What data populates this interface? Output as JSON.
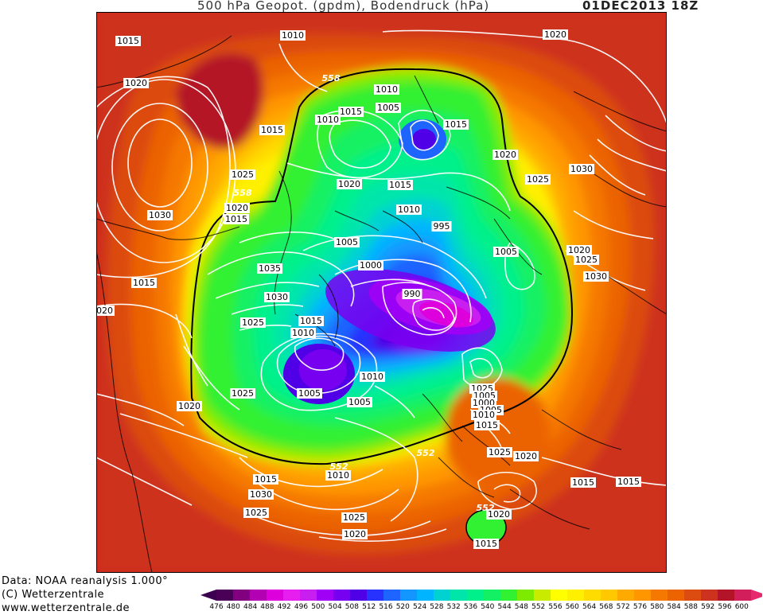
{
  "title": {
    "text": "500 hPa Geopot. (gpdm), Bodendruck (hPa)",
    "date": "01DEC2013 18Z"
  },
  "credits": {
    "line1": "Data: NOAA reanalysis 1.000°",
    "line2": "(C) Wetterzentrale",
    "line3": "www.wetterzentrale.de"
  },
  "legend": {
    "values": [
      "476",
      "480",
      "484",
      "488",
      "492",
      "496",
      "500",
      "504",
      "508",
      "512",
      "516",
      "520",
      "524",
      "528",
      "532",
      "536",
      "540",
      "544",
      "548",
      "552",
      "556",
      "560",
      "564",
      "568",
      "572",
      "576",
      "580",
      "584",
      "588",
      "592",
      "596",
      "600"
    ],
    "colors": [
      "#4b0058",
      "#82007f",
      "#b300b3",
      "#dd00dd",
      "#e61ef0",
      "#c81ef0",
      "#a000f5",
      "#7800f0",
      "#5000e6",
      "#2832ff",
      "#1e64ff",
      "#1496ff",
      "#00b4ff",
      "#00d2d2",
      "#00e6aa",
      "#00f08c",
      "#14f064",
      "#32f032",
      "#7deb00",
      "#c8eb00",
      "#ffff00",
      "#fff000",
      "#ffdc00",
      "#ffc800",
      "#ffaa00",
      "#ff9600",
      "#f57800",
      "#eb6400",
      "#dc4b0f",
      "#cd321e",
      "#b41428",
      "#d21e5a"
    ],
    "arrow_left": "#3c0050",
    "arrow_right": "#e6286e"
  },
  "map_labels": [
    "1015",
    "1010",
    "1020",
    "1020",
    "558",
    "1010",
    "1005",
    "1015",
    "1015",
    "1010",
    "1015",
    "1020",
    "1025",
    "1030",
    "1015",
    "1020",
    "1030",
    "1020",
    "1015",
    "1025",
    "558",
    "1020",
    "1015",
    "1035",
    "1005",
    "1000",
    "995",
    "1005",
    "1010",
    "1030",
    "990",
    "1025",
    "1015",
    "1010",
    "1020",
    "1025",
    "1030",
    "1025",
    "1005",
    "1010",
    "1005",
    "1020",
    "1025",
    "1005",
    "1000",
    "1005",
    "1010",
    "1015",
    "552",
    "1015",
    "1030",
    "1025",
    "1025",
    "1020",
    "1020",
    "1015",
    "1010",
    "552",
    "552",
    "1015",
    "1025",
    "1020",
    "1015"
  ]
}
